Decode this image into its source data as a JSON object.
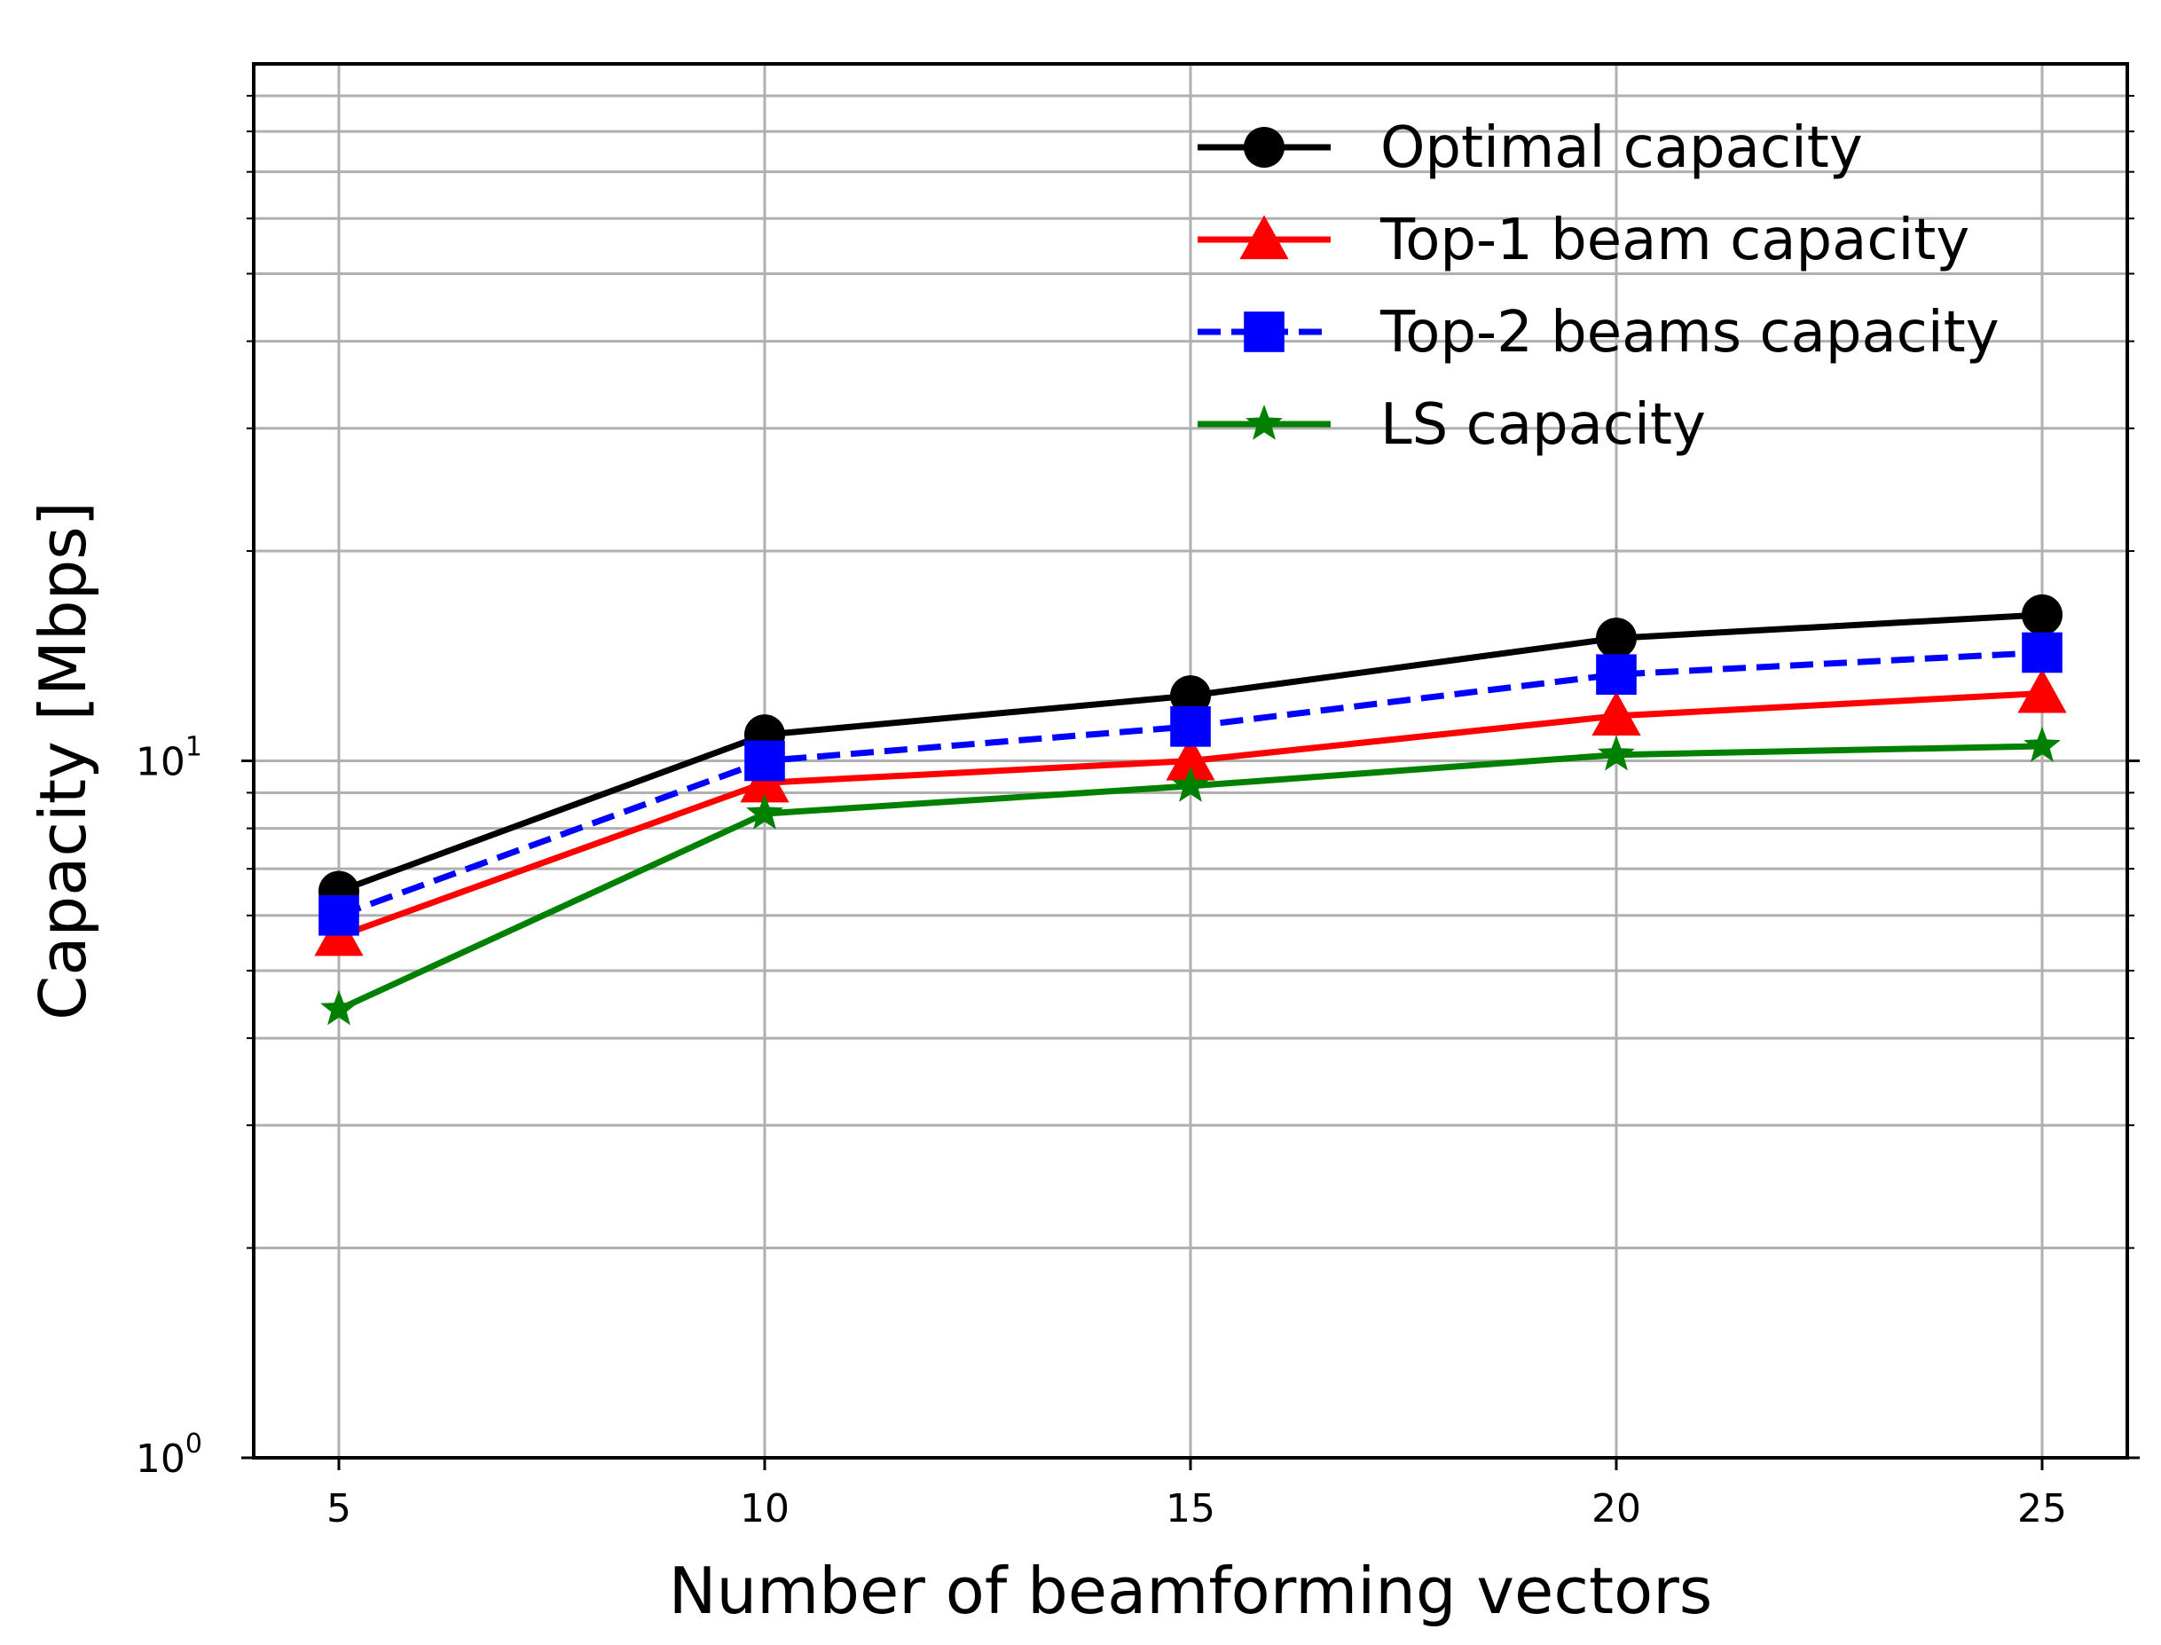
{
  "chart_data": {
    "type": "line",
    "x_scale": "linear",
    "y_scale": "log",
    "x": [
      5,
      10,
      15,
      20,
      25
    ],
    "xlim": [
      4,
      26
    ],
    "ylim": [
      1,
      100
    ],
    "xlabel": "Number of beamforming vectors",
    "ylabel": "Capacity [Mbps]",
    "grid": true,
    "legend_position": "top-right",
    "x_ticks": [
      5,
      10,
      15,
      20,
      25
    ],
    "x_tick_labels": [
      "5",
      "10",
      "15",
      "20",
      "25"
    ],
    "y_ticks": [
      {
        "value": 1,
        "base": "10",
        "exp": "0"
      },
      {
        "value": 10,
        "base": "10",
        "exp": "1"
      }
    ],
    "y_minor_ticks": [
      2,
      3,
      4,
      5,
      6,
      7,
      8,
      9,
      20,
      30,
      40,
      50,
      60,
      70,
      80,
      90
    ],
    "series": [
      {
        "name": "Optimal capacity",
        "color": "#000000",
        "marker": "circle",
        "dash": "solid",
        "values": [
          6.5,
          10.9,
          12.4,
          15.0,
          16.2
        ]
      },
      {
        "name": "Top-1 beam capacity",
        "color": "#ff0000",
        "marker": "triangle",
        "dash": "solid",
        "values": [
          5.6,
          9.3,
          10.0,
          11.6,
          12.5
        ]
      },
      {
        "name": "Top-2 beams capacity",
        "color": "#0000ff",
        "marker": "square",
        "dash": "dashed",
        "values": [
          6.0,
          10.0,
          11.2,
          13.3,
          14.3
        ]
      },
      {
        "name": "LS capacity",
        "color": "#008000",
        "marker": "star",
        "dash": "solid",
        "values": [
          4.4,
          8.4,
          9.2,
          10.2,
          10.5
        ]
      }
    ]
  }
}
